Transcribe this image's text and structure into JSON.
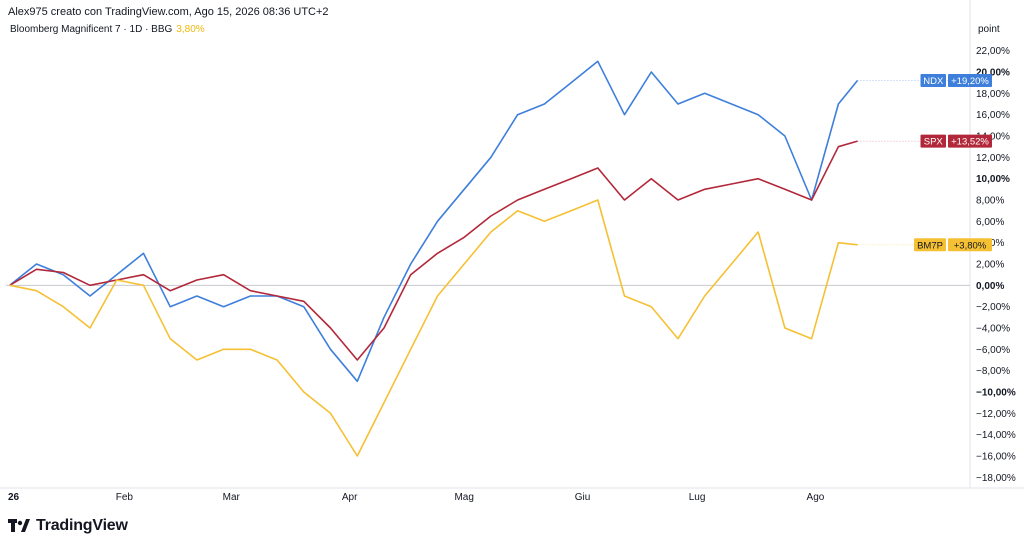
{
  "header": {
    "credit": "Alex975 creato con TradingView.com, Ago 15, 2026 08:36 UTC+2"
  },
  "legend": {
    "symbol": "Bloomberg Magnificent 7 · 1D · BBG",
    "change": "3,80%"
  },
  "axis_unit": "point",
  "brand": {
    "name": "TradingView"
  },
  "colors": {
    "NDX": "#3d7fdb",
    "SPX": "#b2283a",
    "BM7P": "#f5c033",
    "zero": "#c7c9cf"
  },
  "chart_data": {
    "type": "line",
    "x_tick_labels": [
      "26",
      "Feb",
      "Mar",
      "Apr",
      "Mag",
      "Giu",
      "Lug",
      "Ago"
    ],
    "y_ticks": [
      "22,00%",
      "20,00%",
      "18,00%",
      "16,00%",
      "14,00%",
      "12,00%",
      "10,00%",
      "8,00%",
      "6,00%",
      "4,00%",
      "2,00%",
      "0,00%",
      "−2,00%",
      "−4,00%",
      "−6,00%",
      "−8,00%",
      "−10,00%",
      "−12,00%",
      "−14,00%",
      "−16,00%",
      "−18,00%"
    ],
    "ylim": [
      -19,
      23
    ],
    "grid": false,
    "series": [
      {
        "name": "NDX",
        "last_label": "+19,20%",
        "color": "#3d7fdb",
        "x": [
          "2026-01-02",
          "2026-01-09",
          "2026-01-16",
          "2026-01-23",
          "2026-01-30",
          "2026-02-06",
          "2026-02-13",
          "2026-02-20",
          "2026-02-27",
          "2026-03-06",
          "2026-03-13",
          "2026-03-20",
          "2026-03-27",
          "2026-04-03",
          "2026-04-10",
          "2026-04-17",
          "2026-04-24",
          "2026-05-01",
          "2026-05-08",
          "2026-05-15",
          "2026-05-22",
          "2026-05-29",
          "2026-06-05",
          "2026-06-12",
          "2026-06-19",
          "2026-06-26",
          "2026-07-03",
          "2026-07-10",
          "2026-07-17",
          "2026-07-24",
          "2026-07-31",
          "2026-08-07",
          "2026-08-12"
        ],
        "y": [
          0,
          2,
          1,
          -1,
          1,
          3,
          -2,
          -1,
          -2,
          -1,
          -1,
          -2,
          -6,
          -9,
          -3,
          2,
          6,
          9,
          12,
          16,
          17,
          19,
          21,
          16,
          20,
          17,
          18,
          17,
          16,
          14,
          8,
          17,
          19.2
        ]
      },
      {
        "name": "SPX",
        "last_label": "+13,52%",
        "color": "#b2283a",
        "x": [
          "2026-01-02",
          "2026-01-09",
          "2026-01-16",
          "2026-01-23",
          "2026-01-30",
          "2026-02-06",
          "2026-02-13",
          "2026-02-20",
          "2026-02-27",
          "2026-03-06",
          "2026-03-13",
          "2026-03-20",
          "2026-03-27",
          "2026-04-03",
          "2026-04-10",
          "2026-04-17",
          "2026-04-24",
          "2026-05-01",
          "2026-05-08",
          "2026-05-15",
          "2026-05-22",
          "2026-05-29",
          "2026-06-05",
          "2026-06-12",
          "2026-06-19",
          "2026-06-26",
          "2026-07-03",
          "2026-07-10",
          "2026-07-17",
          "2026-07-24",
          "2026-07-31",
          "2026-08-07",
          "2026-08-12"
        ],
        "y": [
          0,
          1.5,
          1.2,
          0,
          0.5,
          1,
          -0.5,
          0.5,
          1,
          -0.5,
          -1,
          -1.5,
          -4,
          -7,
          -4,
          1,
          3,
          4.5,
          6.5,
          8,
          9,
          10,
          11,
          8,
          10,
          8,
          9,
          9.5,
          10,
          9,
          8,
          13,
          13.52
        ]
      },
      {
        "name": "BM7P",
        "last_label": "+3,80%",
        "color": "#f5c033",
        "x": [
          "2026-01-02",
          "2026-01-09",
          "2026-01-16",
          "2026-01-23",
          "2026-01-30",
          "2026-02-06",
          "2026-02-13",
          "2026-02-20",
          "2026-02-27",
          "2026-03-06",
          "2026-03-13",
          "2026-03-20",
          "2026-03-27",
          "2026-04-03",
          "2026-04-10",
          "2026-04-17",
          "2026-04-24",
          "2026-05-01",
          "2026-05-08",
          "2026-05-15",
          "2026-05-22",
          "2026-05-29",
          "2026-06-05",
          "2026-06-12",
          "2026-06-19",
          "2026-06-26",
          "2026-07-03",
          "2026-07-10",
          "2026-07-17",
          "2026-07-24",
          "2026-07-31",
          "2026-08-07",
          "2026-08-12"
        ],
        "y": [
          0,
          -0.5,
          -2,
          -4,
          0.5,
          0,
          -5,
          -7,
          -6,
          -6,
          -7,
          -10,
          -12,
          -16,
          -11,
          -6,
          -1,
          2,
          5,
          7,
          6,
          7,
          8,
          -1,
          -2,
          -5,
          -1,
          2,
          5,
          -4,
          -5,
          4,
          3.8
        ]
      }
    ]
  }
}
